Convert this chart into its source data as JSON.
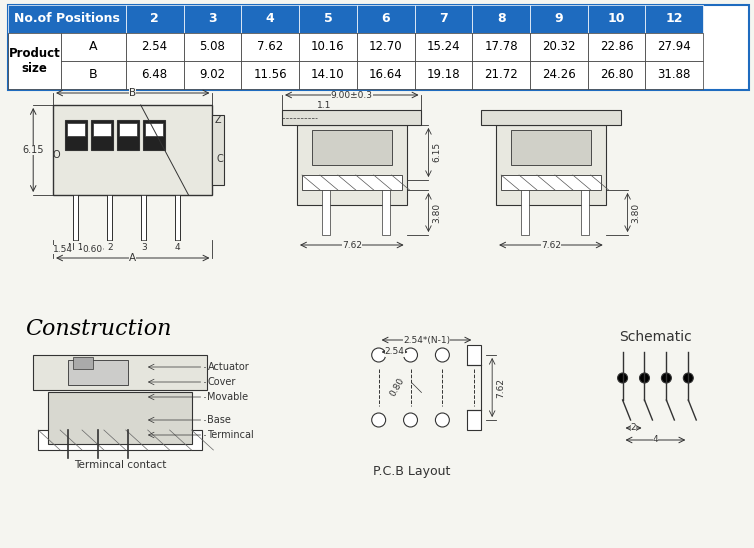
{
  "table": {
    "header_bg": "#1e6bbf",
    "header_text_color": "white",
    "cell_bg": "white",
    "border_color": "#1e6bbf",
    "col_header": [
      "No.of Positions",
      "2",
      "3",
      "4",
      "5",
      "6",
      "7",
      "8",
      "9",
      "10",
      "12"
    ],
    "row_labels": [
      "Product\nsize",
      "A",
      "B"
    ],
    "row_A": [
      "2.54",
      "5.08",
      "7.62",
      "10.16",
      "12.70",
      "15.24",
      "17.78",
      "20.32",
      "22.86",
      "27.94"
    ],
    "row_B": [
      "6.48",
      "9.02",
      "11.56",
      "14.10",
      "16.64",
      "19.18",
      "21.72",
      "24.26",
      "26.80",
      "31.88"
    ]
  },
  "dims": {
    "top_view": {
      "B_label": "B",
      "height_label": "6.15",
      "offset_label1": "1.54",
      "offset_label2": "0.60",
      "A_label": "A",
      "pins": [
        "N 1",
        "2",
        "3",
        "4"
      ],
      "Z_label": "Z",
      "O_label": "O",
      "C_label": "C"
    },
    "front_view": {
      "width_label": "9.00±0.3",
      "inner_label": "1.1",
      "height1": "6.15",
      "height2": "3.80",
      "bottom_width": "7.62"
    },
    "side_view": {
      "height1": "3.80",
      "bottom_width": "7.62"
    }
  },
  "construction": {
    "title": "Construction",
    "labels": [
      "Actuator",
      "Cover",
      "Movable",
      "Base",
      "Termincal"
    ],
    "bottom_label": "Termincal contact"
  },
  "pcb": {
    "dim1": "2.54*(N-1)",
    "dim2": "2.54",
    "dim3": "0.80",
    "dim4": "7.62",
    "title": "P.C.B Layout"
  },
  "schematic": {
    "title": "Schematic",
    "dim1": "2",
    "dim2": "4"
  },
  "bg_color": "#f5f5f0",
  "line_color": "#333333"
}
